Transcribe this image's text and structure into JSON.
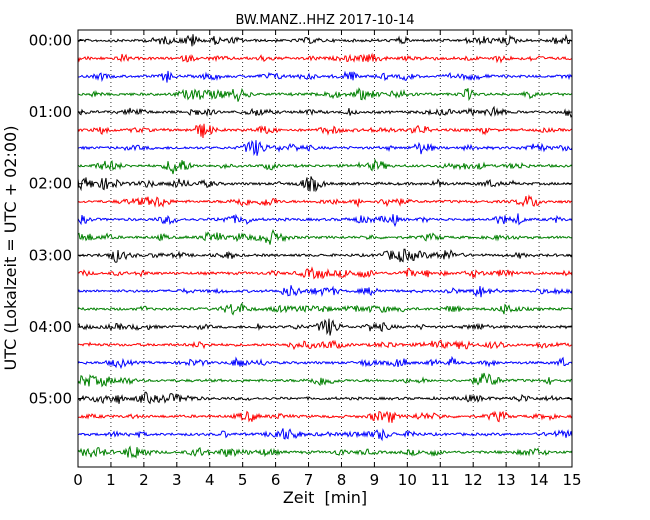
{
  "chart_data": {
    "type": "line",
    "subtype": "dayplot",
    "title": "BW.MANZ..HHZ 2017-10-14",
    "xlabel": "Zeit  [min]",
    "ylabel": "UTC (Lokalzeit = UTC + 02:00)",
    "xlim": [
      0,
      15
    ],
    "x_ticks": [
      "0",
      "1",
      "2",
      "3",
      "4",
      "5",
      "6",
      "7",
      "8",
      "9",
      "10",
      "11",
      "12",
      "13",
      "14",
      "15"
    ],
    "y_tick_labels": [
      "00:00",
      "01:00",
      "02:00",
      "03:00",
      "04:00",
      "05:00"
    ],
    "grid": "vertical-dotted",
    "trace_interval_minutes": 15,
    "trace_count": 24,
    "trace_colors": [
      "#000000",
      "#ff0000",
      "#0000ff",
      "#008000"
    ]
  }
}
